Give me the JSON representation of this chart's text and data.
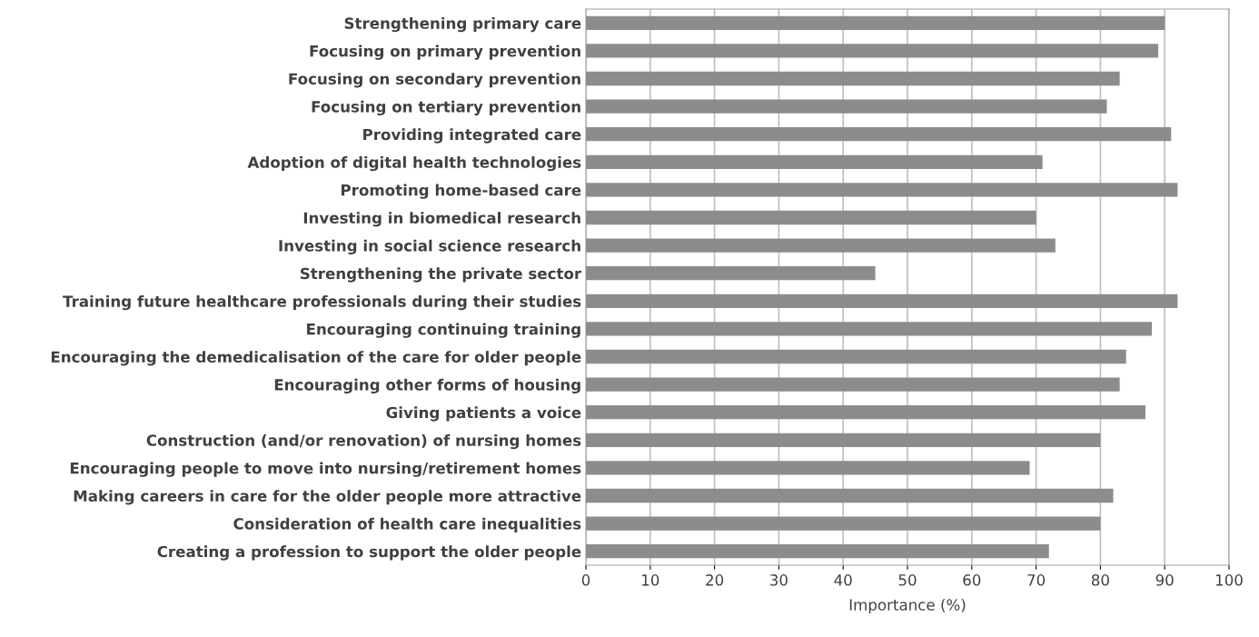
{
  "chart_data": {
    "type": "bar",
    "orientation": "horizontal",
    "xlabel": "Importance (%)",
    "categories": [
      "Strengthening primary care",
      "Focusing on primary prevention",
      "Focusing on secondary prevention",
      "Focusing on tertiary prevention",
      "Providing integrated care",
      "Adoption of digital health technologies",
      "Promoting home-based care",
      "Investing in biomedical research",
      "Investing in social science research",
      "Strengthening the private sector",
      "Training future healthcare professionals during their studies",
      "Encouraging continuing training",
      "Encouraging the demedicalisation of the care for older people",
      "Encouraging other forms of housing",
      "Giving patients a voice",
      "Construction (and/or renovation) of nursing homes",
      "Encouraging people to move into nursing/retirement homes",
      "Making careers in care for the older people more attractive",
      "Consideration of health care inequalities",
      "Creating a profession to support the older people"
    ],
    "values": [
      90,
      89,
      83,
      81,
      91,
      71,
      92,
      70,
      73,
      45,
      92,
      88,
      84,
      83,
      87,
      80,
      69,
      82,
      80,
      72
    ],
    "color": "#8c8c8c",
    "xlim": [
      0,
      100
    ],
    "xticks": [
      0,
      10,
      20,
      30,
      40,
      50,
      60,
      70,
      80,
      90,
      100
    ],
    "grid": "x",
    "legend": false
  }
}
